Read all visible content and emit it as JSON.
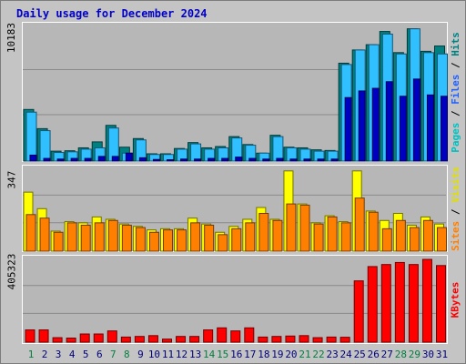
{
  "title": "Daily usage for December 2024",
  "colors": {
    "pages": "#00a0a0",
    "files": "#30c0ff",
    "hits": "#008080",
    "sites": "#ff8000",
    "visits": "#ffff00",
    "kbytes": "#ff0000",
    "weekend_day_label": "#008040",
    "weekday_label": "#000080"
  },
  "chart_data": [
    {
      "type": "bar",
      "panel": "hits-files-pages",
      "right_label_parts": [
        {
          "text": "Pages",
          "color": "#00c0c0"
        },
        {
          "text": " / ",
          "color": "#000000"
        },
        {
          "text": "Files",
          "color": "#2060ff"
        },
        {
          "text": " / ",
          "color": "#000000"
        },
        {
          "text": "Hits",
          "color": "#008080"
        }
      ],
      "y_max_label": "10183",
      "ylim": [
        0,
        10183
      ],
      "x": [
        1,
        2,
        3,
        4,
        5,
        6,
        7,
        8,
        9,
        10,
        11,
        12,
        13,
        14,
        15,
        16,
        17,
        18,
        19,
        20,
        21,
        22,
        23,
        24,
        25,
        26,
        27,
        28,
        29,
        30,
        31
      ],
      "series": [
        {
          "name": "Hits",
          "color": "#008080",
          "values": [
            3900,
            2450,
            750,
            780,
            1000,
            1450,
            2700,
            1050,
            1700,
            550,
            550,
            950,
            1400,
            1000,
            1100,
            1850,
            1250,
            600,
            1950,
            1050,
            1000,
            850,
            800,
            7400,
            8400,
            8800,
            9800,
            8200,
            10000,
            8300,
            8700
          ]
        },
        {
          "name": "Files",
          "color": "#30c0ff",
          "values": [
            3700,
            2300,
            650,
            700,
            900,
            1000,
            2500,
            600,
            1600,
            500,
            500,
            900,
            1300,
            900,
            1000,
            1750,
            1200,
            600,
            1850,
            1000,
            900,
            750,
            750,
            7300,
            8400,
            8800,
            9600,
            8100,
            10000,
            8200,
            8100
          ]
        },
        {
          "name": "Pages",
          "color": "#0000c0",
          "values": [
            450,
            200,
            150,
            200,
            200,
            350,
            350,
            600,
            250,
            120,
            100,
            150,
            150,
            200,
            200,
            300,
            200,
            150,
            200,
            150,
            150,
            150,
            150,
            4800,
            5300,
            5500,
            6000,
            4900,
            6200,
            5000,
            4900
          ]
        }
      ]
    },
    {
      "type": "bar",
      "panel": "visits-sites",
      "right_label_parts": [
        {
          "text": "Sites",
          "color": "#ff8000"
        },
        {
          "text": " / ",
          "color": "#000000"
        },
        {
          "text": "Visits",
          "color": "#e0e000"
        }
      ],
      "y_max_label": "347",
      "ylim": [
        0,
        347
      ],
      "x": [
        1,
        2,
        3,
        4,
        5,
        6,
        7,
        8,
        9,
        10,
        11,
        12,
        13,
        14,
        15,
        16,
        17,
        18,
        19,
        20,
        21,
        22,
        23,
        24,
        25,
        26,
        27,
        28,
        29,
        30,
        31
      ],
      "series": [
        {
          "name": "Visits",
          "color": "#ffff00",
          "values": [
            250,
            180,
            85,
            125,
            120,
            145,
            135,
            115,
            105,
            90,
            95,
            95,
            140,
            115,
            80,
            105,
            135,
            185,
            135,
            340,
            200,
            120,
            150,
            125,
            340,
            170,
            130,
            160,
            110,
            145,
            115
          ]
        },
        {
          "name": "Sites",
          "color": "#ff8000",
          "values": [
            155,
            140,
            80,
            120,
            110,
            120,
            130,
            110,
            100,
            80,
            90,
            90,
            120,
            110,
            70,
            95,
            120,
            160,
            130,
            200,
            195,
            115,
            145,
            120,
            225,
            165,
            95,
            130,
            100,
            130,
            100
          ]
        }
      ]
    },
    {
      "type": "bar",
      "panel": "kbytes",
      "right_label_parts": [
        {
          "text": "KBytes",
          "color": "#ff0000"
        }
      ],
      "y_max_label": "405323",
      "ylim": [
        0,
        405323
      ],
      "x": [
        1,
        2,
        3,
        4,
        5,
        6,
        7,
        8,
        9,
        10,
        11,
        12,
        13,
        14,
        15,
        16,
        17,
        18,
        19,
        20,
        21,
        22,
        23,
        24,
        25,
        26,
        27,
        28,
        29,
        30,
        31
      ],
      "series": [
        {
          "name": "KBytes",
          "color": "#ff0000",
          "values": [
            60000,
            60000,
            22000,
            20000,
            40000,
            40000,
            55000,
            25000,
            28000,
            32000,
            15000,
            28000,
            28000,
            60000,
            70000,
            55000,
            70000,
            25000,
            28000,
            30000,
            32000,
            22000,
            25000,
            24000,
            300000,
            370000,
            380000,
            390000,
            380000,
            405000,
            375000
          ]
        }
      ]
    }
  ],
  "x_axis": {
    "labels": [
      "1",
      "2",
      "3",
      "4",
      "5",
      "6",
      "7",
      "8",
      "9",
      "10",
      "11",
      "12",
      "13",
      "14",
      "15",
      "16",
      "17",
      "18",
      "19",
      "20",
      "21",
      "22",
      "23",
      "24",
      "25",
      "26",
      "27",
      "28",
      "29",
      "30",
      "31"
    ],
    "weekend_days": [
      "1",
      "7",
      "8",
      "14",
      "15",
      "21",
      "22",
      "28",
      "29"
    ]
  }
}
